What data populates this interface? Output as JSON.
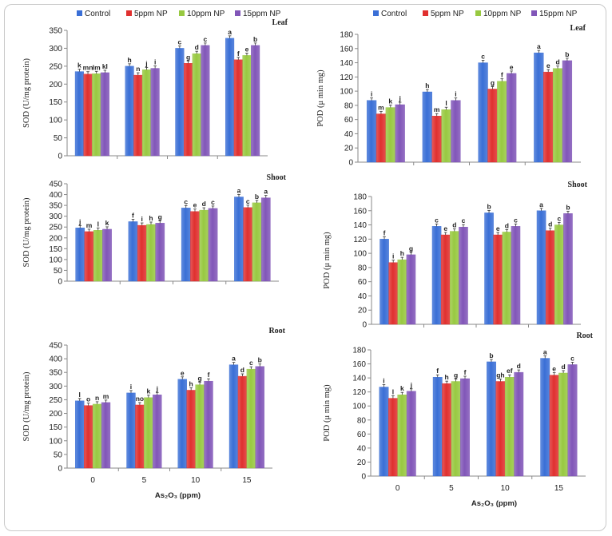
{
  "series_names": [
    "Control",
    "5ppm NP",
    "10ppm NP",
    "15ppm NP"
  ],
  "series_colors": [
    "#3a6fd6",
    "#e0302f",
    "#98c941",
    "#8156b8"
  ],
  "x_categories": [
    "0",
    "5",
    "10",
    "15"
  ],
  "x_title": "As₂O₃ (ppm)",
  "chart_data": [
    {
      "type": "bar",
      "id": "sod-leaf",
      "organ": "Leaf",
      "ylabel": "SOD (U/mg protein)",
      "ylim": [
        0,
        350
      ],
      "yticks": [
        0,
        50,
        100,
        150,
        200,
        250,
        300,
        350
      ],
      "categories": [
        "0",
        "5",
        "10",
        "15"
      ],
      "series": [
        {
          "name": "Control",
          "values": [
            235,
            250,
            300,
            328
          ],
          "letters": [
            "k",
            "h",
            "c",
            "a"
          ]
        },
        {
          "name": "5ppm NP",
          "values": [
            228,
            225,
            258,
            268
          ],
          "letters": [
            "mn",
            "n",
            "g",
            "f"
          ]
        },
        {
          "name": "10ppm NP",
          "values": [
            229,
            240,
            285,
            280
          ],
          "letters": [
            "lm",
            "j",
            "d",
            "e"
          ]
        },
        {
          "name": "15ppm NP",
          "values": [
            232,
            244,
            308,
            308
          ],
          "letters": [
            "kl",
            "i",
            "c",
            "b"
          ]
        }
      ]
    },
    {
      "type": "bar",
      "id": "pod-leaf",
      "organ": "Leaf",
      "ylabel": "POD (μ min mg)",
      "ylim": [
        0,
        180
      ],
      "yticks": [
        0,
        20,
        40,
        60,
        80,
        100,
        120,
        140,
        160,
        180
      ],
      "categories": [
        "0",
        "5",
        "10",
        "15"
      ],
      "series": [
        {
          "name": "Control",
          "values": [
            87,
            99,
            140,
            154
          ],
          "letters": [
            "i",
            "h",
            "c",
            "a"
          ]
        },
        {
          "name": "5ppm NP",
          "values": [
            68,
            65,
            103,
            127
          ],
          "letters": [
            "m",
            "m",
            "g",
            "e"
          ]
        },
        {
          "name": "10ppm NP",
          "values": [
            77,
            74,
            114,
            132
          ],
          "letters": [
            "k",
            "l",
            "f",
            "d"
          ]
        },
        {
          "name": "15ppm NP",
          "values": [
            81,
            87,
            125,
            143
          ],
          "letters": [
            "j",
            "i",
            "e",
            "b"
          ]
        }
      ]
    },
    {
      "type": "bar",
      "id": "sod-shoot",
      "organ": "Shoot",
      "ylabel": "SOD (U/mg protein)",
      "ylim": [
        0,
        450
      ],
      "yticks": [
        0,
        50,
        100,
        150,
        200,
        250,
        300,
        350,
        400,
        450
      ],
      "categories": [
        "0",
        "5",
        "10",
        "15"
      ],
      "series": [
        {
          "name": "Control",
          "values": [
            246,
            275,
            338,
            389
          ],
          "letters": [
            "j",
            "f",
            "c",
            "a"
          ]
        },
        {
          "name": "5ppm NP",
          "values": [
            229,
            258,
            322,
            340
          ],
          "letters": [
            "m",
            "i",
            "e",
            "c"
          ]
        },
        {
          "name": "10ppm NP",
          "values": [
            235,
            262,
            328,
            362
          ],
          "letters": [
            "l",
            "h",
            "d",
            "b"
          ]
        },
        {
          "name": "15ppm NP",
          "values": [
            240,
            268,
            336,
            385
          ],
          "letters": [
            "k",
            "g",
            "c",
            "a"
          ]
        }
      ]
    },
    {
      "type": "bar",
      "id": "pod-shoot",
      "organ": "Shoot",
      "ylabel": "POD (μ min mg)",
      "ylim": [
        0,
        180
      ],
      "yticks": [
        0,
        20,
        40,
        60,
        80,
        100,
        120,
        140,
        160,
        180
      ],
      "categories": [
        "0",
        "5",
        "10",
        "15"
      ],
      "series": [
        {
          "name": "Control",
          "values": [
            120,
            138,
            157,
            160
          ],
          "letters": [
            "f",
            "c",
            "b",
            "a"
          ]
        },
        {
          "name": "5ppm NP",
          "values": [
            87,
            126,
            126,
            132
          ],
          "letters": [
            "i",
            "e",
            "e",
            "d"
          ]
        },
        {
          "name": "10ppm NP",
          "values": [
            91,
            131,
            130,
            140
          ],
          "letters": [
            "h",
            "d",
            "d",
            "c"
          ]
        },
        {
          "name": "15ppm NP",
          "values": [
            98,
            137,
            138,
            156
          ],
          "letters": [
            "g",
            "c",
            "c",
            "b"
          ]
        }
      ]
    },
    {
      "type": "bar",
      "id": "sod-root",
      "organ": "Root",
      "ylabel": "SOD (U/mg protein)",
      "ylim": [
        0,
        450
      ],
      "yticks": [
        0,
        50,
        100,
        150,
        200,
        250,
        300,
        350,
        400,
        450
      ],
      "categories": [
        "0",
        "5",
        "10",
        "15"
      ],
      "series": [
        {
          "name": "Control",
          "values": [
            246,
            275,
            325,
            378
          ],
          "letters": [
            "l",
            "i",
            "e",
            "a"
          ]
        },
        {
          "name": "5ppm NP",
          "values": [
            229,
            231,
            285,
            336
          ],
          "letters": [
            "o",
            "no",
            "h",
            "d"
          ]
        },
        {
          "name": "10ppm NP",
          "values": [
            234,
            258,
            305,
            362
          ],
          "letters": [
            "n",
            "k",
            "g",
            "c"
          ]
        },
        {
          "name": "15ppm NP",
          "values": [
            240,
            268,
            318,
            372
          ],
          "letters": [
            "m",
            "j",
            "f",
            "b"
          ]
        }
      ]
    },
    {
      "type": "bar",
      "id": "pod-root",
      "organ": "Root",
      "ylabel": "POD (μ min mg)",
      "ylim": [
        0,
        180
      ],
      "yticks": [
        0,
        20,
        40,
        60,
        80,
        100,
        120,
        140,
        160,
        180
      ],
      "categories": [
        "0",
        "5",
        "10",
        "15"
      ],
      "series": [
        {
          "name": "Control",
          "values": [
            127,
            141,
            163,
            168
          ],
          "letters": [
            "i",
            "f",
            "b",
            "a"
          ]
        },
        {
          "name": "5ppm NP",
          "values": [
            111,
            132,
            135,
            144
          ],
          "letters": [
            "l",
            "h",
            "gh",
            "e"
          ]
        },
        {
          "name": "10ppm NP",
          "values": [
            116,
            135,
            141,
            147
          ],
          "letters": [
            "k",
            "g",
            "ef",
            "d"
          ]
        },
        {
          "name": "15ppm NP",
          "values": [
            121,
            139,
            148,
            159
          ],
          "letters": [
            "j",
            "f",
            "d",
            "c"
          ]
        }
      ]
    }
  ]
}
